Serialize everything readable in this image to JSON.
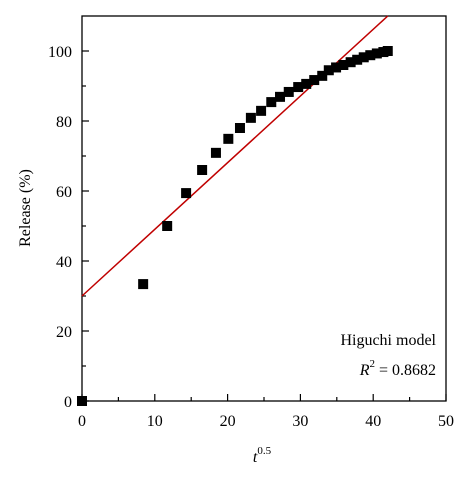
{
  "chart_data": {
    "type": "scatter",
    "x_label": {
      "base": "t",
      "exponent": "0.5"
    },
    "y_label": "Release (%)",
    "annotation": {
      "model": "Higuchi model",
      "r_symbol": "R",
      "r_exponent": "2",
      "r_value": " = 0.8682"
    },
    "xlim": [
      0,
      50
    ],
    "ylim": [
      0,
      110
    ],
    "xticks": [
      0,
      10,
      20,
      30,
      40,
      50
    ],
    "yticks": [
      0,
      20,
      40,
      60,
      80,
      100
    ],
    "x_minor_ticks": [
      5,
      15,
      25,
      35,
      45
    ],
    "y_minor_ticks": [
      10,
      30,
      50,
      70,
      90
    ],
    "series": [
      {
        "color": "#000000",
        "x": [
          0,
          8.4,
          11.7,
          14.3,
          16.5,
          18.4,
          20.1,
          21.7,
          23.2,
          24.6,
          26,
          27.2,
          28.4,
          29.7,
          30.8,
          31.9,
          33,
          33.9,
          34.9,
          35.9,
          36.9,
          37.8,
          38.7,
          39.6,
          40.5,
          41.4,
          42
        ],
        "values": [
          0,
          33.4,
          50,
          59.4,
          66,
          70.9,
          74.9,
          78,
          80.9,
          82.9,
          85.4,
          86.9,
          88.3,
          89.7,
          90.6,
          91.7,
          92.9,
          94.5,
          95.3,
          96,
          96.8,
          97.5,
          98.2,
          98.8,
          99.3,
          99.7,
          100
        ]
      }
    ],
    "fit_line": {
      "color": "#c00000",
      "x": [
        0,
        42
      ],
      "values": [
        30,
        110
      ]
    }
  }
}
